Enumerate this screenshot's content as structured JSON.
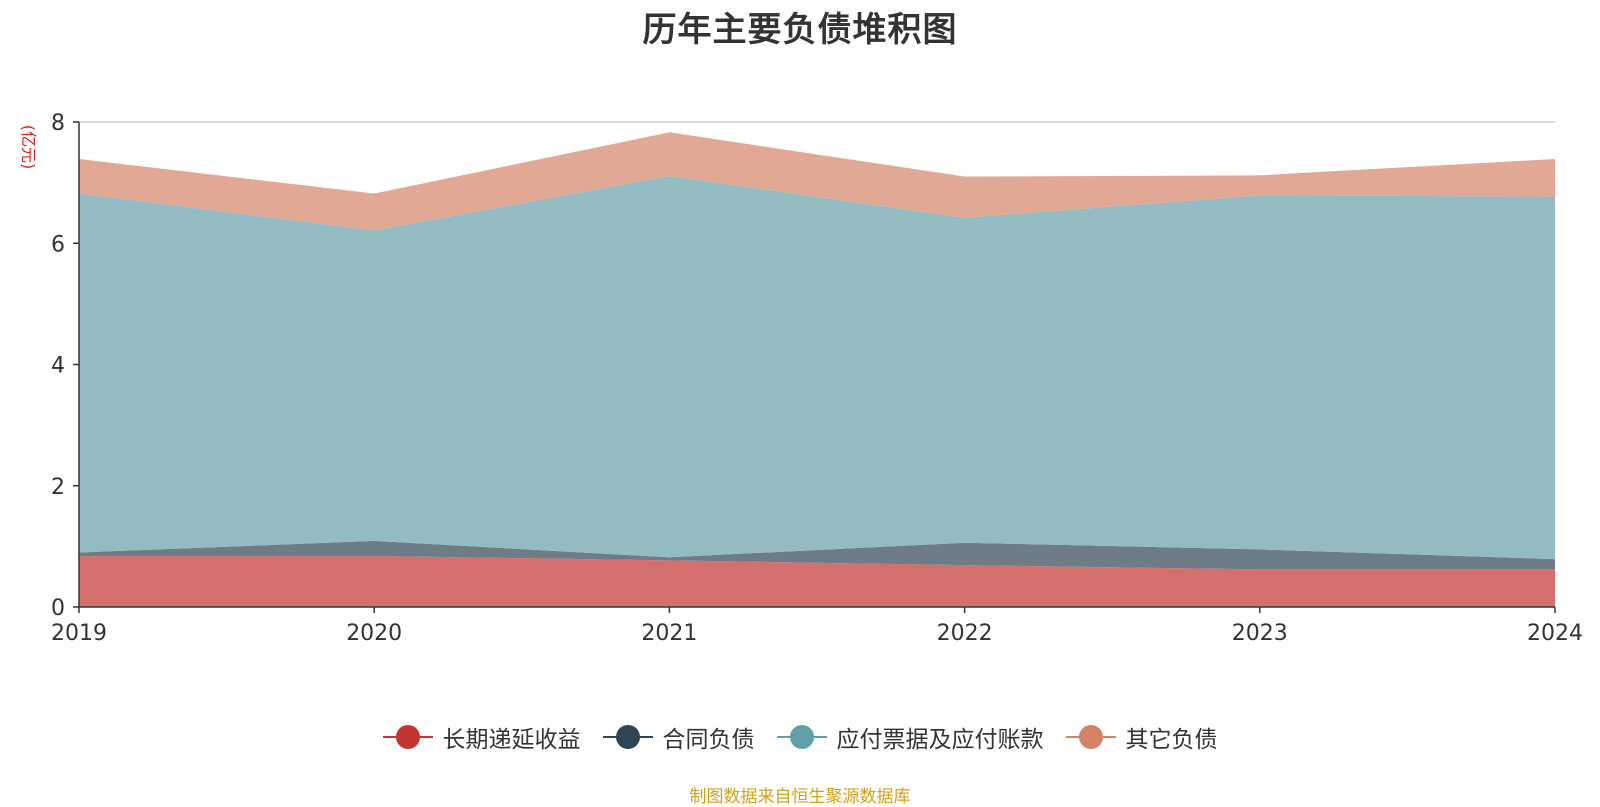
{
  "title": "历年主要负债堆积图",
  "source_note": "制图数据来自恒生聚源数据库",
  "colors": {
    "unit_label": "#e02020",
    "source_note": "#d4a017"
  },
  "chart_data": {
    "type": "area",
    "stacked": true,
    "title": "历年主要负债堆积图",
    "xlabel": "",
    "ylabel": "(亿元)",
    "ylim": [
      0,
      8
    ],
    "yticks": [
      0,
      2,
      4,
      6,
      8
    ],
    "grid": true,
    "legend_position": "bottom-center",
    "categories": [
      "2019",
      "2020",
      "2021",
      "2022",
      "2023",
      "2024"
    ],
    "series": [
      {
        "name": "长期递延收益",
        "color": "#c23531",
        "fill": "#d4706d",
        "values": [
          0.84,
          0.84,
          0.77,
          0.69,
          0.62,
          0.62
        ]
      },
      {
        "name": "合同负债",
        "color": "#2f4554",
        "fill": "#6e7c87",
        "values": [
          0.06,
          0.25,
          0.05,
          0.37,
          0.33,
          0.17
        ]
      },
      {
        "name": "应付票据及应付账款",
        "color": "#61a0a8",
        "fill": "#93bbc1",
        "values": [
          5.92,
          5.12,
          6.29,
          5.36,
          5.84,
          5.98
        ]
      },
      {
        "name": "其它负债",
        "color": "#d48265",
        "fill": "#e1a895",
        "values": [
          0.57,
          0.61,
          0.72,
          0.68,
          0.33,
          0.62
        ]
      }
    ]
  }
}
